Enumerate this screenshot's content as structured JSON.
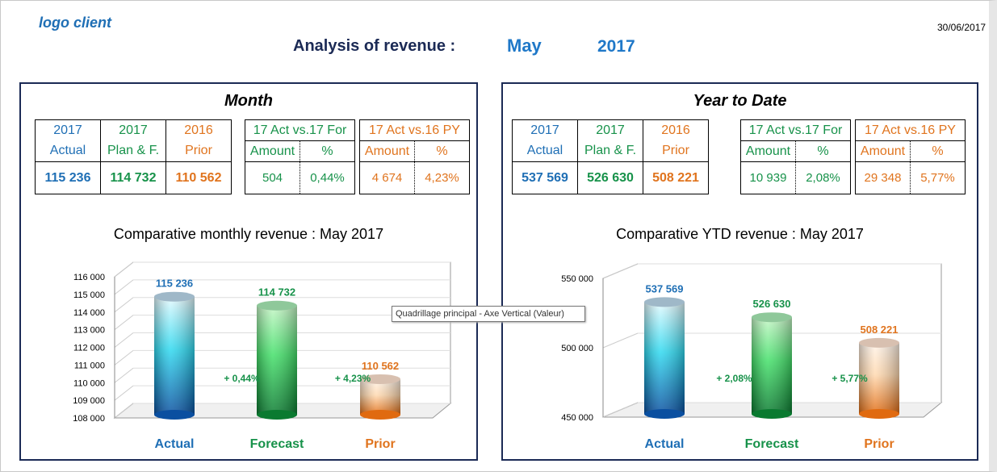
{
  "header": {
    "logo": "logo client",
    "date": "30/06/2017",
    "title": "Analysis of revenue :",
    "month": "May",
    "year": "2017"
  },
  "colors": {
    "actual": "#1f6fb5",
    "forecast": "#17924a",
    "prior": "#e0741e",
    "frame": "#1b2a55"
  },
  "tooltip": "Quadrillage principal - Axe Vertical (Valeur)",
  "panels": [
    {
      "title": "Month",
      "cols": [
        {
          "year": "2017",
          "label": "Actual",
          "value": "115 236"
        },
        {
          "year": "2017",
          "label": "Plan & F.",
          "value": "114 732"
        },
        {
          "year": "2016",
          "label": "Prior",
          "value": "110 562"
        }
      ],
      "vs_for": {
        "title": "17 Act vs.17 For",
        "amount_label": "Amount",
        "pct_label": "%",
        "amount": "504",
        "pct": "0,44%"
      },
      "vs_py": {
        "title": "17 Act vs.16 PY",
        "amount_label": "Amount",
        "pct_label": "%",
        "amount": "4 674",
        "pct": "4,23%"
      },
      "chart_title": "Comparative monthly revenue : May 2017"
    },
    {
      "title": "Year to Date",
      "cols": [
        {
          "year": "2017",
          "label": "Actual",
          "value": "537 569"
        },
        {
          "year": "2017",
          "label": "Plan & F.",
          "value": "526 630"
        },
        {
          "year": "2016",
          "label": "Prior",
          "value": "508 221"
        }
      ],
      "vs_for": {
        "title": "17 Act vs.17 For",
        "amount_label": "Amount",
        "pct_label": "%",
        "amount": "10 939",
        "pct": "2,08%"
      },
      "vs_py": {
        "title": "17 Act vs.16 PY",
        "amount_label": "Amount",
        "pct_label": "%",
        "amount": "29 348",
        "pct": "5,77%"
      },
      "chart_title": "Comparative YTD revenue : May 2017"
    }
  ],
  "chart_data": [
    {
      "type": "bar",
      "title": "Comparative monthly revenue : May 2017",
      "categories": [
        "Actual",
        "Forecast",
        "Prior"
      ],
      "values": [
        115236,
        114732,
        110562
      ],
      "value_labels": [
        "115 236",
        "114 732",
        "110 562"
      ],
      "diff_labels": [
        "+ 0,44%",
        "+ 4,23%"
      ],
      "ylim": [
        108000,
        116000
      ],
      "yticks": [
        108000,
        109000,
        110000,
        111000,
        112000,
        113000,
        114000,
        115000,
        116000
      ],
      "ytick_labels": [
        "108 000",
        "109 000",
        "110 000",
        "111 000",
        "112 000",
        "113 000",
        "114 000",
        "115 000",
        "116 000"
      ]
    },
    {
      "type": "bar",
      "title": "Comparative YTD revenue : May 2017",
      "categories": [
        "Actual",
        "Forecast",
        "Prior"
      ],
      "values": [
        537569,
        526630,
        508221
      ],
      "value_labels": [
        "537 569",
        "526 630",
        "508 221"
      ],
      "diff_labels": [
        "+ 2,08%",
        "+ 5,77%"
      ],
      "ylim": [
        450000,
        550000
      ],
      "yticks": [
        450000,
        500000,
        550000
      ],
      "ytick_labels": [
        "450 000",
        "500 000",
        "550 000"
      ]
    }
  ]
}
